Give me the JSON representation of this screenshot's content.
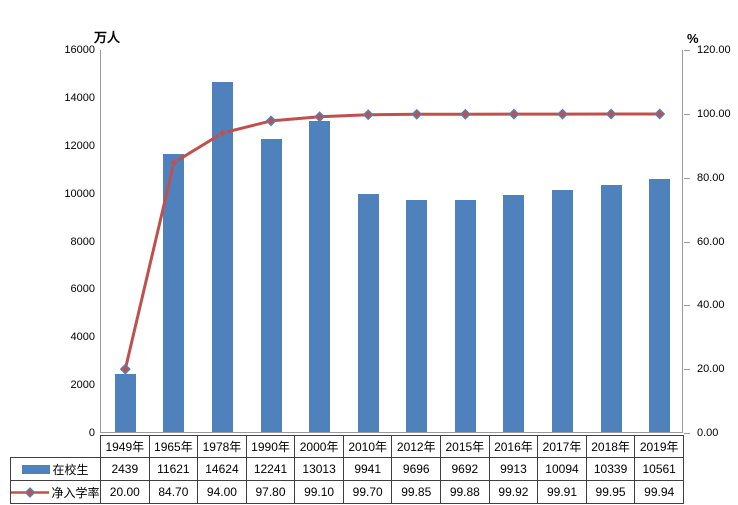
{
  "chart_data": {
    "type": "bar",
    "subtype": "combo-bar-line",
    "categories": [
      "1949年",
      "1965年",
      "1978年",
      "1990年",
      "2000年",
      "2010年",
      "2012年",
      "2015年",
      "2016年",
      "2017年",
      "2018年",
      "2019年"
    ],
    "series": [
      {
        "name": "在校生",
        "type": "bar",
        "axis": "left",
        "color": "#4f81bd",
        "values": [
          2439,
          11621,
          14624,
          12241,
          13013,
          9941,
          9696,
          9692,
          9913,
          10094,
          10339,
          10561
        ]
      },
      {
        "name": "净入学率",
        "type": "line",
        "axis": "right",
        "color": "#c0504d",
        "marker": "diamond",
        "marker_fill": "#c0504d",
        "marker_border": "#4f81bd",
        "values": [
          20.0,
          84.7,
          94.0,
          97.8,
          99.1,
          99.7,
          99.85,
          99.88,
          99.92,
          99.91,
          99.95,
          99.94
        ]
      }
    ],
    "title": "",
    "xlabel": "",
    "left_axis": {
      "label": "万人",
      "min": 0,
      "max": 16000,
      "step": 2000,
      "ticks": [
        "16000",
        "14000",
        "12000",
        "10000",
        "8000",
        "6000",
        "4000",
        "2000",
        "0"
      ]
    },
    "right_axis": {
      "label": "%",
      "min": 0,
      "max": 120,
      "step": 20,
      "ticks": [
        "120.00",
        "100.00",
        "80.00",
        "60.00",
        "40.00",
        "20.00",
        "0.00"
      ]
    },
    "grid": false,
    "legend_position": "table-left"
  },
  "table": {
    "columns": [
      "1949年",
      "1965年",
      "1978年",
      "1990年",
      "2000年",
      "2010年",
      "2012年",
      "2015年",
      "2016年",
      "2017年",
      "2018年",
      "2019年"
    ],
    "rows": [
      {
        "label": "在校生",
        "swatch": "bar-swatch",
        "cells": [
          "2439",
          "11621",
          "14624",
          "12241",
          "13013",
          "9941",
          "9696",
          "9692",
          "9913",
          "10094",
          "10339",
          "10561"
        ]
      },
      {
        "label": "净入学率",
        "swatch": "line-diamond-swatch",
        "cells": [
          "20.00",
          "84.70",
          "94.00",
          "97.80",
          "99.10",
          "99.70",
          "99.85",
          "99.88",
          "99.92",
          "99.91",
          "99.95",
          "99.94"
        ]
      }
    ]
  }
}
